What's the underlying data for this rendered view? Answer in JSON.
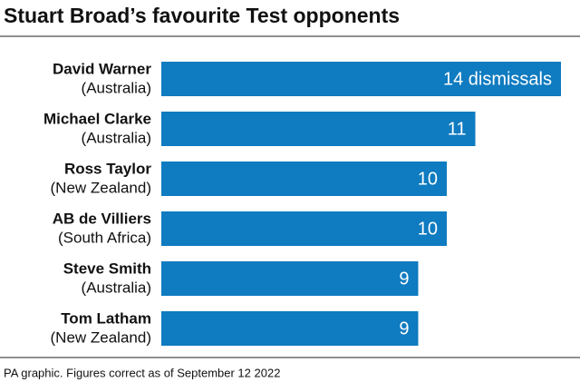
{
  "chart_data": {
    "type": "bar",
    "orientation": "horizontal",
    "title": "Stuart Broad’s favourite Test opponents",
    "categories": [
      "David Warner",
      "Michael Clarke",
      "Ross Taylor",
      "AB de Villiers",
      "Steve Smith",
      "Tom Latham"
    ],
    "countries": [
      "(Australia)",
      "(Australia)",
      "(New Zealand)",
      "(South Africa)",
      "(Australia)",
      "(New Zealand)"
    ],
    "values": [
      14,
      11,
      10,
      10,
      9,
      9
    ],
    "value_labels": [
      "14 dismissals",
      "11",
      "10",
      "10",
      "9",
      "9"
    ],
    "color": "#0f7bc0",
    "note": "PA graphic. Figures correct as of September 12 2022"
  }
}
